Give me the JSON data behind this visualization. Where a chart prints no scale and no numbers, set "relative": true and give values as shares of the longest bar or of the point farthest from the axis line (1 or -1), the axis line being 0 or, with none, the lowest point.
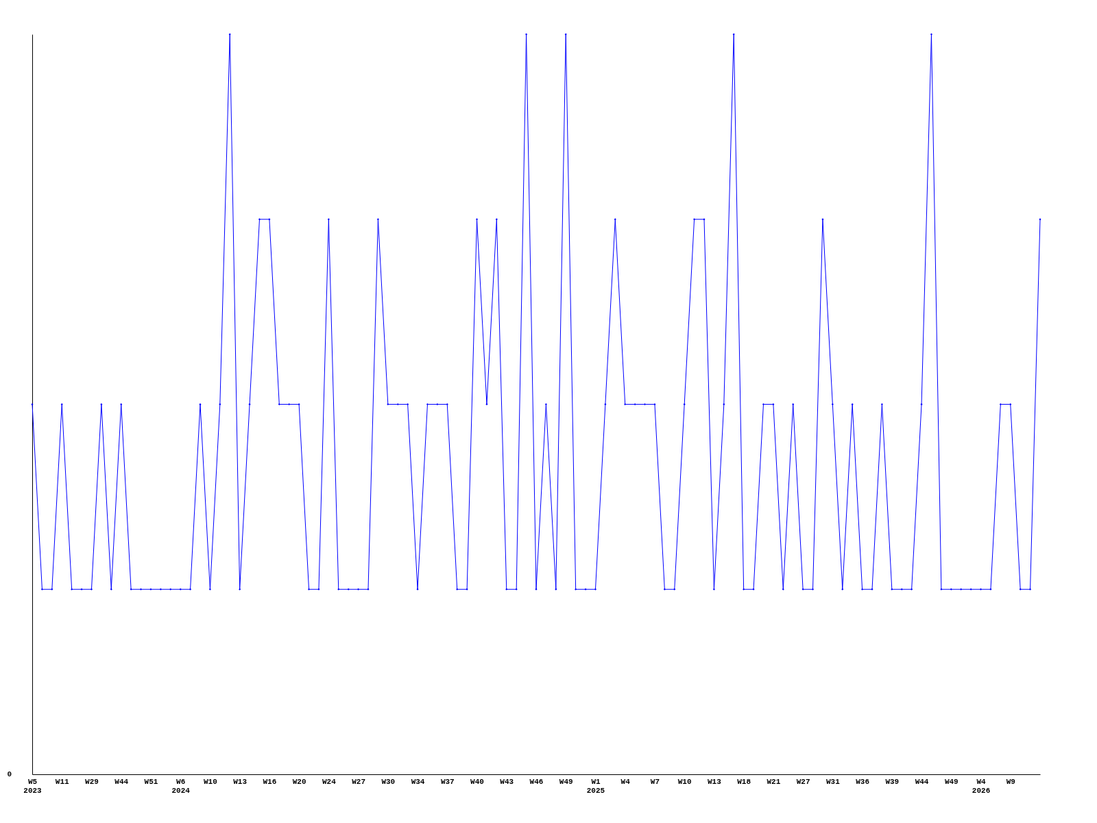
{
  "chart_data": {
    "type": "line",
    "relative": true,
    "marker": "diamond",
    "grid": false,
    "categories": [
      "W5\n2023",
      null,
      null,
      "W11",
      null,
      null,
      "W29",
      null,
      null,
      "W44",
      null,
      null,
      "W51",
      null,
      null,
      "W6\n2024",
      null,
      null,
      "W10",
      null,
      null,
      "W13",
      null,
      null,
      "W16",
      null,
      null,
      "W20",
      null,
      null,
      "W24",
      null,
      null,
      "W27",
      null,
      null,
      "W30",
      null,
      null,
      "W34",
      null,
      null,
      "W37",
      null,
      null,
      "W40",
      null,
      null,
      "W43",
      null,
      null,
      "W46",
      null,
      null,
      "W49",
      null,
      null,
      "W1\n2025",
      null,
      null,
      "W4",
      null,
      null,
      "W7",
      null,
      null,
      "W10",
      null,
      null,
      "W13",
      null,
      null,
      "W18",
      null,
      null,
      "W21",
      null,
      null,
      "W27",
      null,
      null,
      "W31",
      null,
      null,
      "W36",
      null,
      null,
      "W39",
      null,
      null,
      "W44",
      null,
      null,
      "W49",
      null,
      null,
      "W4\n2026",
      null,
      null,
      "W9",
      null,
      null,
      null
    ],
    "series": [
      {
        "color": "#0000ff",
        "values": [
          0.5,
          0.25,
          0.25,
          0.5,
          0.25,
          0.25,
          0.25,
          0.5,
          0.25,
          0.5,
          0.25,
          0.25,
          0.25,
          0.25,
          0.25,
          0.25,
          0.25,
          0.5,
          0.25,
          0.5,
          1,
          0.25,
          0.5,
          0.75,
          0.75,
          0.5,
          0.5,
          0.5,
          0.25,
          0.25,
          0.75,
          0.25,
          0.25,
          0.25,
          0.25,
          0.75,
          0.5,
          0.5,
          0.5,
          0.25,
          0.5,
          0.5,
          0.5,
          0.25,
          0.25,
          0.75,
          0.5,
          0.75,
          0.25,
          0.25,
          1,
          0.25,
          0.5,
          0.25,
          1,
          0.25,
          0.25,
          0.25,
          0.5,
          0.75,
          0.5,
          0.5,
          0.5,
          0.5,
          0.25,
          0.25,
          0.5,
          0.75,
          0.75,
          0.25,
          0.5,
          1,
          0.25,
          0.25,
          0.5,
          0.5,
          0.25,
          0.5,
          0.25,
          0.25,
          0.75,
          0.5,
          0.25,
          0.5,
          0.25,
          0.25,
          0.5,
          0.25,
          0.25,
          0.25,
          0.5,
          1,
          0.25,
          0.25,
          0.25,
          0.25,
          0.25,
          0.25,
          0.5,
          0.5,
          0.25,
          0.25,
          0.75
        ]
      }
    ],
    "annotations": [
      "0"
    ]
  }
}
